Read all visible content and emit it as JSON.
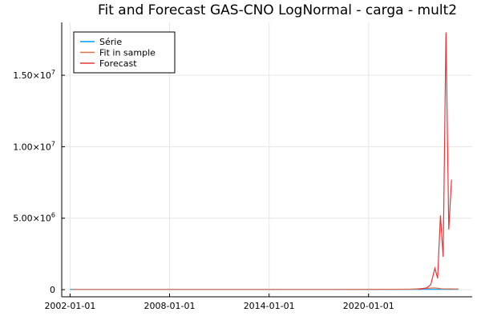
{
  "chart_data": {
    "type": "line",
    "title": "Fit and Forecast GAS-CNO LogNormal - carga - mult2",
    "xlabel": "",
    "ylabel": "",
    "x_axis_type": "date",
    "xlim": [
      "2001-07-01",
      "2026-04-01"
    ],
    "ylim": [
      -500000,
      18700000
    ],
    "x_ticks": [
      "2002-01-01",
      "2008-01-01",
      "2014-01-01",
      "2020-01-01"
    ],
    "y_ticks": [
      {
        "value": 0,
        "label": "0",
        "exp": ""
      },
      {
        "value": 5000000,
        "label": "5.00×10",
        "exp": "6"
      },
      {
        "value": 10000000,
        "label": "1.00×10",
        "exp": "7"
      },
      {
        "value": 15000000,
        "label": "1.50×10",
        "exp": "7"
      }
    ],
    "grid": true,
    "legend_position": "top-left",
    "series": [
      {
        "name": "Série",
        "color": "#009AFA",
        "points": [
          [
            "2002-01-01",
            15000
          ],
          [
            "2010-01-01",
            16000
          ],
          [
            "2018-01-01",
            17000
          ],
          [
            "2023-06-01",
            18000
          ],
          [
            "2024-06-01",
            18000
          ],
          [
            "2025-06-01",
            18000
          ]
        ]
      },
      {
        "name": "Fit in sample",
        "color": "#E26F46",
        "points": [
          [
            "2002-02-01",
            14000
          ],
          [
            "2010-01-01",
            16000
          ],
          [
            "2018-01-01",
            17000
          ],
          [
            "2022-06-01",
            30000
          ],
          [
            "2023-01-01",
            60000
          ],
          [
            "2023-06-01",
            90000
          ],
          [
            "2024-01-01",
            120000
          ],
          [
            "2024-06-01",
            60000
          ],
          [
            "2025-06-01",
            50000
          ]
        ]
      },
      {
        "name": "Forecast",
        "color": "#E5373A",
        "points": [
          [
            "2023-01-01",
            25000
          ],
          [
            "2023-07-01",
            120000
          ],
          [
            "2023-10-01",
            350000
          ],
          [
            "2024-01-01",
            1500000
          ],
          [
            "2024-03-01",
            800000
          ],
          [
            "2024-05-01",
            5200000
          ],
          [
            "2024-07-01",
            2300000
          ],
          [
            "2024-09-01",
            18000000
          ],
          [
            "2024-11-01",
            4200000
          ],
          [
            "2025-01-01",
            7700000
          ]
        ]
      }
    ]
  }
}
